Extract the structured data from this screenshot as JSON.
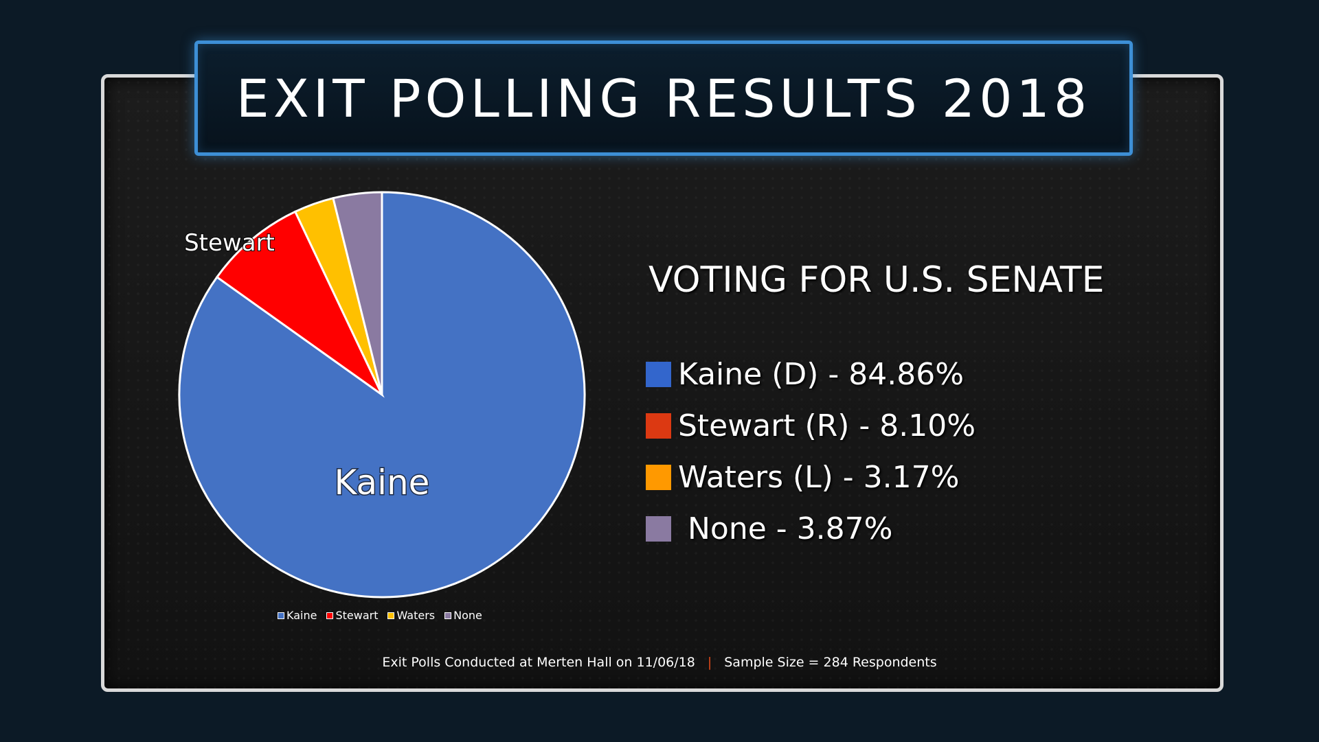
{
  "banner": {
    "title": "EXIT POLLING RESULTS 2018"
  },
  "chart_data": {
    "type": "pie",
    "title": "",
    "categories": [
      "Kaine",
      "Stewart",
      "Waters",
      "None"
    ],
    "values": [
      84.86,
      8.1,
      3.17,
      3.87
    ],
    "colors": [
      "#4472c4",
      "#ff0000",
      "#ffc000",
      "#8a7aa1"
    ],
    "slice_labels": [
      "Kaine",
      "Stewart",
      "",
      ""
    ],
    "legend": {
      "position": "bottom",
      "entries": [
        "Kaine",
        "Stewart",
        "Waters",
        "None"
      ]
    }
  },
  "results": {
    "heading": "VOTING FOR U.S. SENATE",
    "items": [
      {
        "text": "Kaine (D) - 84.86%",
        "color": "#3366cc"
      },
      {
        "text": "Stewart (R) - 8.10%",
        "color": "#dc3912"
      },
      {
        "text": "Waters (L) - 3.17%",
        "color": "#ff9900"
      },
      {
        "text": " None - 3.87%",
        "color": "#8a7aa1"
      }
    ]
  },
  "footer": {
    "left": "Exit Polls Conducted at Merten Hall on 11/06/18",
    "separator": "|",
    "right": "Sample Size = 284 Respondents"
  }
}
